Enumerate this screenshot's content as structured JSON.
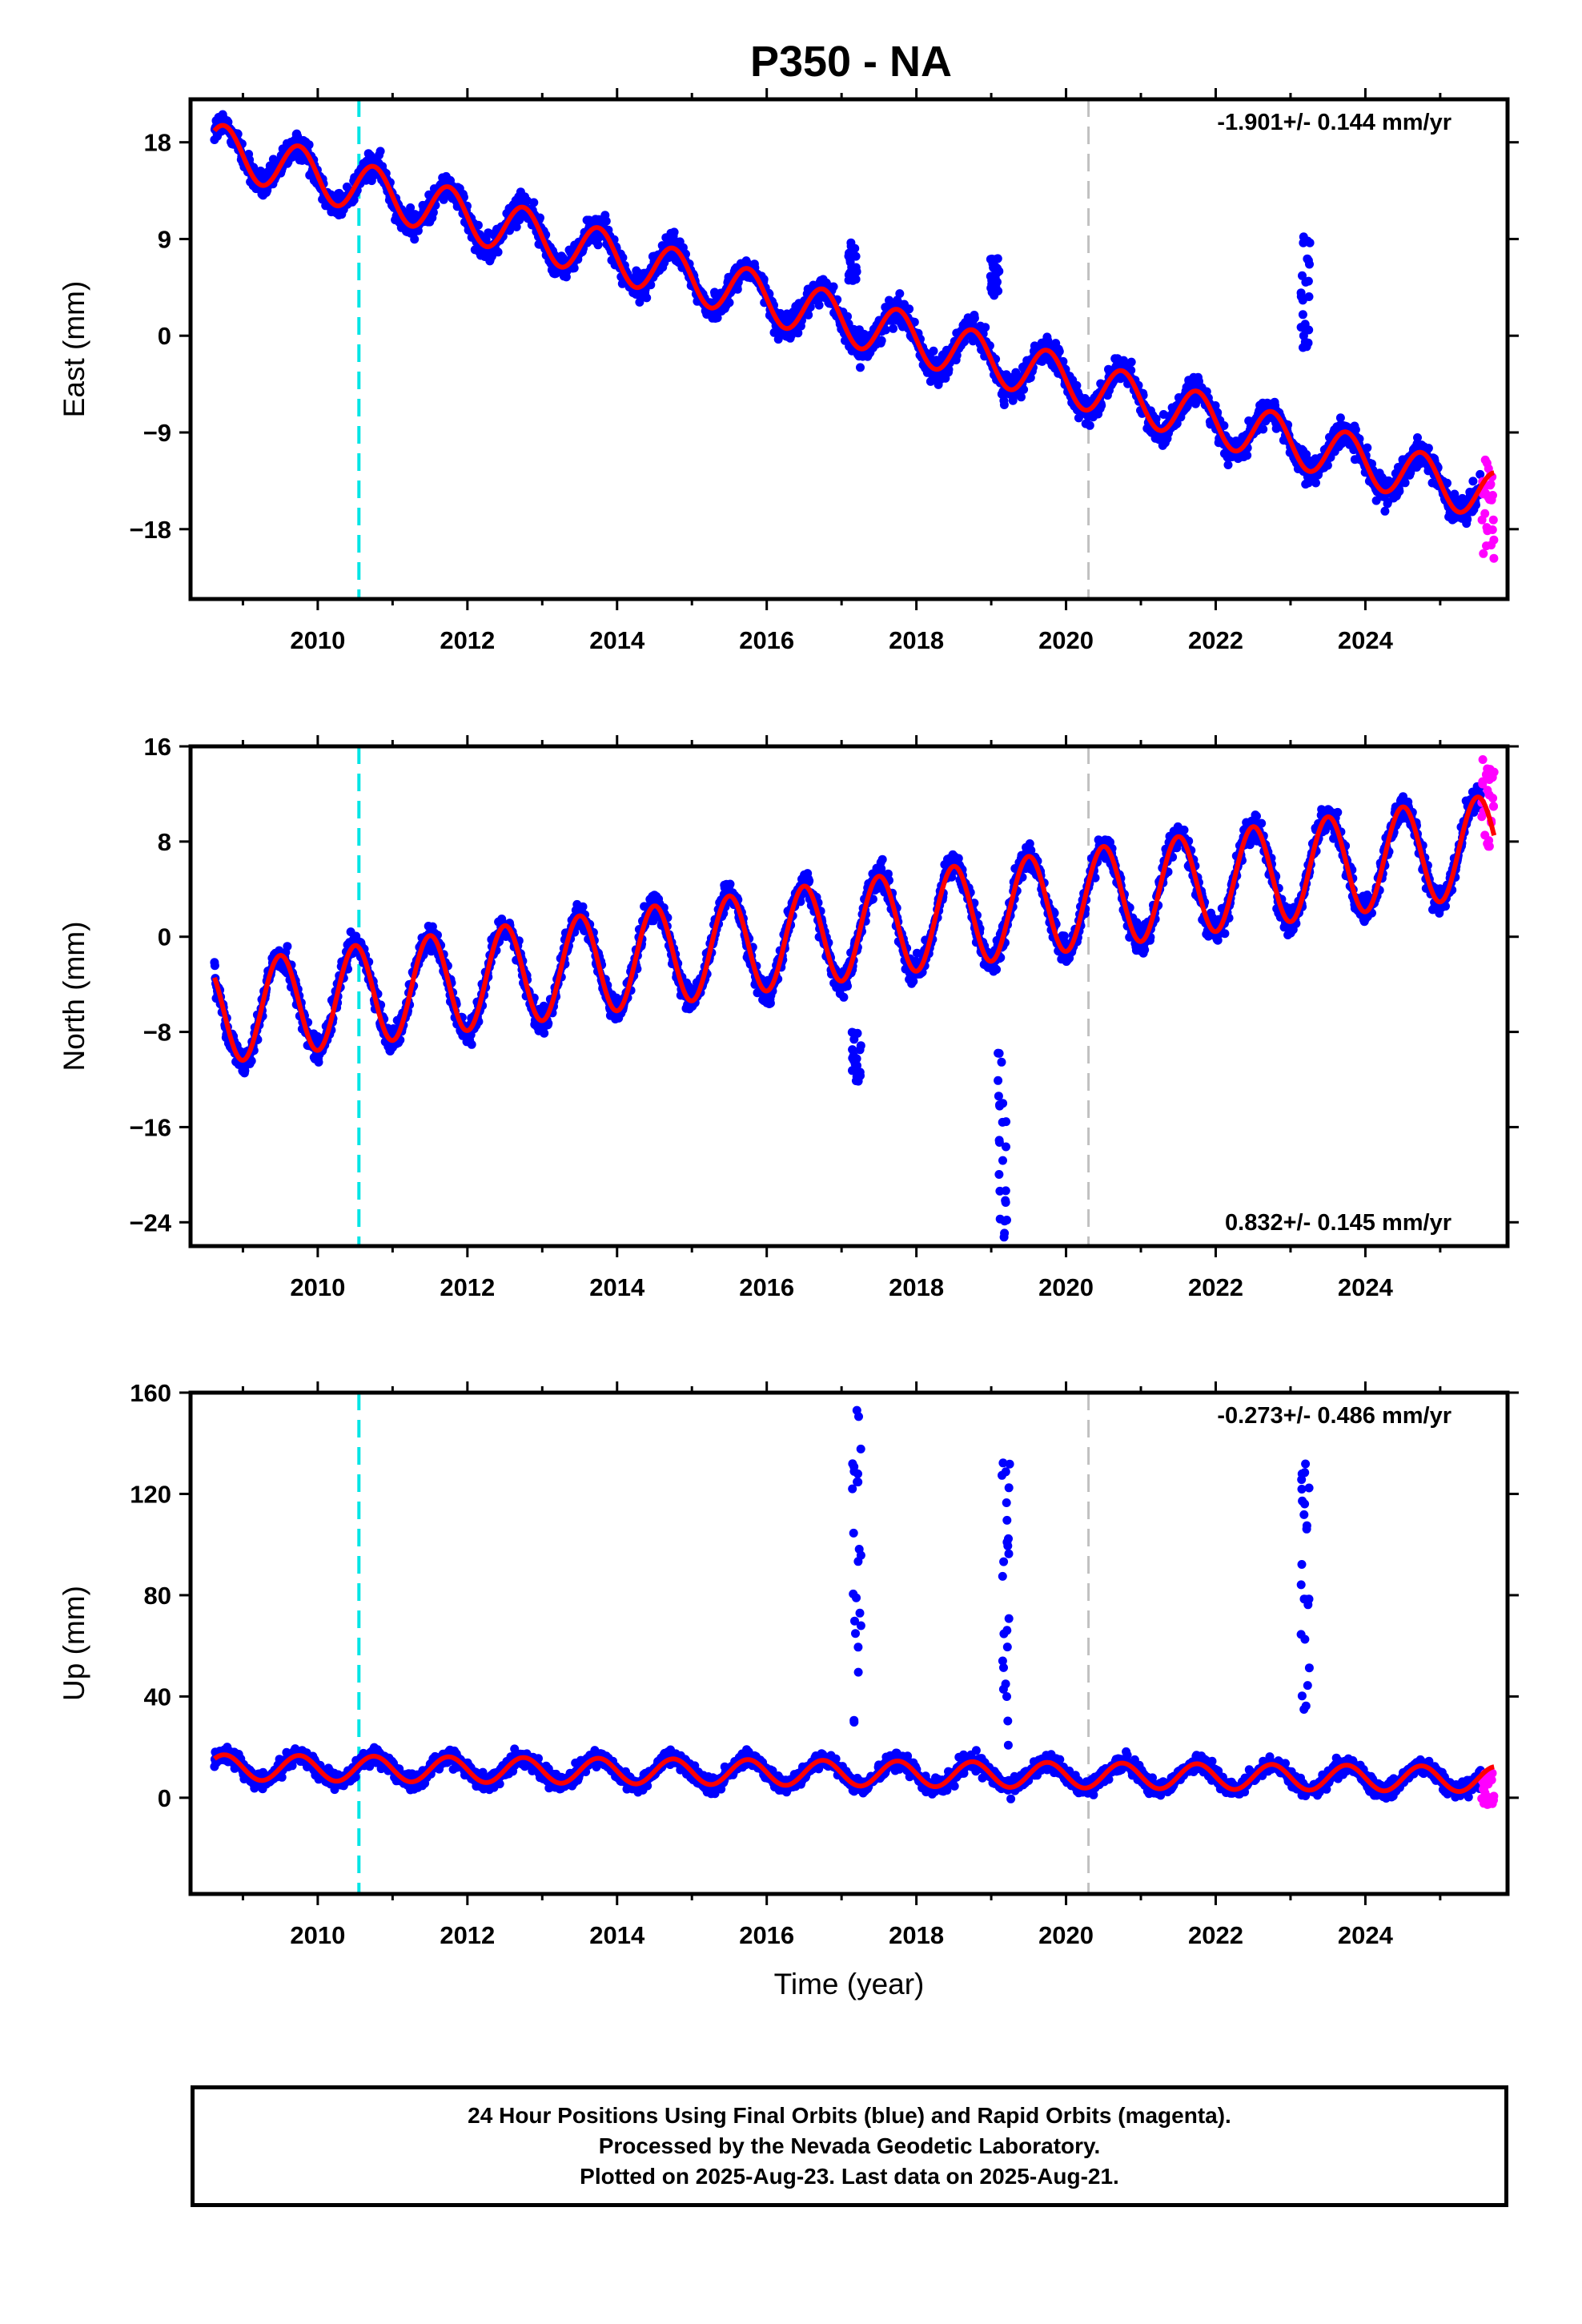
{
  "title": "P350 - NA",
  "colors": {
    "final_orbits": "#0000ff",
    "rapid_orbits": "#ff00ff",
    "model_fit": "#ff0000",
    "event_cyan": "#00e5e5",
    "event_gray": "#c0c0c0",
    "frame": "#000000"
  },
  "chart_data": [
    {
      "type": "scatter",
      "component": "east",
      "ylabel": "East (mm)",
      "xlabel": "",
      "xlim": [
        2008.3,
        2025.9
      ],
      "ylim": [
        -24.5,
        22
      ],
      "xticks": [
        2010,
        2012,
        2014,
        2016,
        2018,
        2020,
        2022,
        2024
      ],
      "yticks": [
        18,
        9,
        0,
        -9,
        -18
      ],
      "ytick_labels": [
        "18",
        "9",
        "0",
        "−9",
        "−18"
      ],
      "rate_label": "-1.901+/- 0.144 mm/yr",
      "rate_label_position": "top-right",
      "event_lines": [
        {
          "x": 2010.55,
          "style": "cyan-dashed"
        },
        {
          "x": 2020.3,
          "style": "gray-dashed"
        }
      ],
      "model": {
        "start_x": 2008.62,
        "start_y": 17.5,
        "trend": -1.901,
        "annual_amplitude": 2.3,
        "annual_peak": 0.75
      },
      "outlier_clusters": [
        {
          "x": 2017.15,
          "ymin": 5,
          "ymax": 9.5
        },
        {
          "x": 2019.05,
          "ymin": 3.5,
          "ymax": 7.5
        },
        {
          "x": 2023.2,
          "ymin": -1.5,
          "ymax": 9.3
        }
      ],
      "rapid_orbits": {
        "xmin": 2025.55,
        "xmax": 2025.72,
        "ymin": -21,
        "ymax": -11.5
      }
    },
    {
      "type": "scatter",
      "component": "north",
      "ylabel": "North (mm)",
      "xlabel": "",
      "xlim": [
        2008.3,
        2025.9
      ],
      "ylim": [
        -26,
        16
      ],
      "xticks": [
        2010,
        2012,
        2014,
        2016,
        2018,
        2020,
        2022,
        2024
      ],
      "yticks": [
        16,
        8,
        0,
        -8,
        -16,
        -24
      ],
      "ytick_labels": [
        "16",
        "8",
        "0",
        "−8",
        "−16",
        "−24"
      ],
      "rate_label": "0.832+/- 0.145 mm/yr",
      "rate_label_position": "bottom-right",
      "event_lines": [
        {
          "x": 2010.55,
          "style": "cyan-dashed"
        },
        {
          "x": 2020.3,
          "style": "gray-dashed"
        }
      ],
      "model": {
        "start_x": 2008.62,
        "start_y": -6.5,
        "trend": 0.832,
        "annual_amplitude": 4.2,
        "annual_peak": 0.5
      },
      "outlier_clusters": [
        {
          "x": 2017.2,
          "ymin": -12.5,
          "ymax": -8
        },
        {
          "x": 2019.15,
          "ymin": -25.5,
          "ymax": -8.5
        }
      ],
      "rapid_orbits": {
        "xmin": 2025.55,
        "xmax": 2025.72,
        "ymin": 7.5,
        "ymax": 15
      }
    },
    {
      "type": "scatter",
      "component": "up",
      "ylabel": "Up (mm)",
      "xlabel": "Time (year)",
      "xlim": [
        2008.3,
        2025.9
      ],
      "ylim": [
        -38,
        160
      ],
      "xticks": [
        2010,
        2012,
        2014,
        2016,
        2018,
        2020,
        2022,
        2024
      ],
      "yticks": [
        160,
        120,
        80,
        40,
        0
      ],
      "ytick_labels": [
        "160",
        "120",
        "80",
        "40",
        "0"
      ],
      "rate_label": "-0.273+/- 0.486 mm/yr",
      "rate_label_position": "top-right",
      "event_lines": [
        {
          "x": 2010.55,
          "style": "cyan-dashed"
        },
        {
          "x": 2020.3,
          "style": "gray-dashed"
        }
      ],
      "model": {
        "start_x": 2008.62,
        "start_y": 12,
        "trend": -0.273,
        "annual_amplitude": 5,
        "annual_peak": 0.75
      },
      "outlier_clusters": [
        {
          "x": 2017.2,
          "ymin": 25,
          "ymax": 157
        },
        {
          "x": 2019.2,
          "ymin": 20,
          "ymax": 134
        },
        {
          "x": 2023.2,
          "ymin": 28,
          "ymax": 133
        }
      ],
      "rapid_orbits": {
        "xmin": 2025.55,
        "xmax": 2025.72,
        "ymin": -5,
        "ymax": 12
      }
    }
  ],
  "caption": {
    "line1": "24 Hour Positions Using Final Orbits (blue) and Rapid Orbits (magenta).",
    "line2": "Processed by the Nevada Geodetic Laboratory.",
    "line3": "Plotted on 2025-Aug-23. Last data on 2025-Aug-21."
  }
}
